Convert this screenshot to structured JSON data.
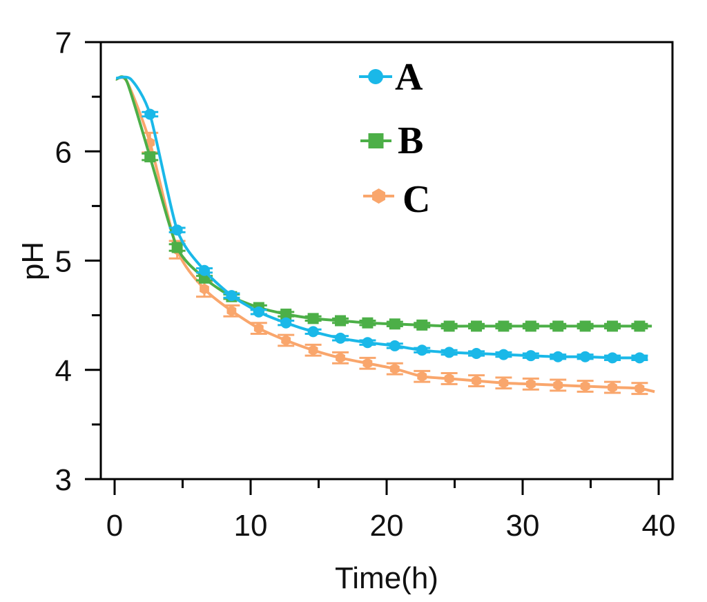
{
  "chart_data": {
    "type": "line",
    "title": "",
    "xlabel": "Time(h)",
    "ylabel": "pH",
    "xlim": [
      -1,
      41
    ],
    "ylim": [
      3,
      7
    ],
    "x_ticks": [
      0,
      10,
      20,
      30,
      40
    ],
    "x_tick_labels": [
      "0",
      "10",
      "20",
      "30",
      "40"
    ],
    "x_minor_ticks": [
      5,
      15,
      25,
      35
    ],
    "y_ticks": [
      3,
      4,
      5,
      6,
      7
    ],
    "y_tick_labels": [
      "3",
      "4",
      "5",
      "6",
      "7"
    ],
    "y_minor_ticks": [
      3.5,
      4.5,
      5.5,
      6.5
    ],
    "grid": false,
    "legend_position": "top-center",
    "series": [
      {
        "name": "A",
        "color": "#1ab8e8",
        "marker": "circle",
        "line_x": [
          0.1,
          1.2,
          2.6,
          4.6,
          6.6,
          8.6,
          10.6,
          12.6,
          14.6,
          16.6,
          18.6,
          20.6,
          22.6,
          24.6,
          26.6,
          28.6,
          30.6,
          32.6,
          34.6,
          36.6,
          38.6,
          39.2
        ],
        "line_y": [
          6.67,
          6.66,
          6.34,
          5.28,
          4.91,
          4.68,
          4.53,
          4.43,
          4.35,
          4.29,
          4.25,
          4.22,
          4.18,
          4.16,
          4.15,
          4.14,
          4.13,
          4.12,
          4.12,
          4.11,
          4.11,
          4.11
        ],
        "x": [
          2.6,
          4.6,
          6.6,
          8.6,
          10.6,
          12.6,
          14.6,
          16.6,
          18.6,
          20.6,
          22.6,
          24.6,
          26.6,
          28.6,
          30.6,
          32.6,
          34.6,
          36.6,
          38.6
        ],
        "y": [
          6.34,
          5.28,
          4.91,
          4.68,
          4.53,
          4.43,
          4.35,
          4.29,
          4.25,
          4.22,
          4.18,
          4.16,
          4.15,
          4.14,
          4.13,
          4.12,
          4.12,
          4.11,
          4.11
        ],
        "error": [
          0.02,
          0.02,
          0.02,
          0.02,
          0.02,
          0.02,
          0.02,
          0.02,
          0.02,
          0.02,
          0.02,
          0.02,
          0.02,
          0.02,
          0.02,
          0.02,
          0.02,
          0.02,
          0.02
        ]
      },
      {
        "name": "B",
        "color": "#4caf47",
        "marker": "square",
        "line_x": [
          0.1,
          0.9,
          2.6,
          4.6,
          6.6,
          8.6,
          10.6,
          12.6,
          14.6,
          16.6,
          18.6,
          20.6,
          22.6,
          24.6,
          26.6,
          28.6,
          30.6,
          32.6,
          34.6,
          36.6,
          38.6,
          39.5
        ],
        "line_y": [
          6.66,
          6.64,
          5.95,
          5.12,
          4.84,
          4.67,
          4.57,
          4.51,
          4.47,
          4.45,
          4.43,
          4.42,
          4.41,
          4.4,
          4.4,
          4.4,
          4.4,
          4.4,
          4.4,
          4.4,
          4.4,
          4.4
        ],
        "x": [
          2.6,
          4.6,
          6.6,
          8.6,
          10.6,
          12.6,
          14.6,
          16.6,
          18.6,
          20.6,
          22.6,
          24.6,
          26.6,
          28.6,
          30.6,
          32.6,
          34.6,
          36.6,
          38.6
        ],
        "y": [
          5.95,
          5.12,
          4.84,
          4.67,
          4.57,
          4.51,
          4.47,
          4.45,
          4.43,
          4.42,
          4.41,
          4.4,
          4.4,
          4.4,
          4.4,
          4.4,
          4.4,
          4.4,
          4.4
        ],
        "error": [
          0.03,
          0.03,
          0.02,
          0.02,
          0.02,
          0.02,
          0.02,
          0.02,
          0.02,
          0.02,
          0.02,
          0.02,
          0.02,
          0.02,
          0.02,
          0.02,
          0.02,
          0.02,
          0.02
        ]
      },
      {
        "name": "C",
        "color": "#f9a66c",
        "marker": "hexagon",
        "line_x": [
          0.1,
          0.9,
          2.6,
          4.6,
          6.6,
          8.6,
          10.6,
          12.6,
          14.6,
          16.6,
          18.6,
          20.6,
          22.6,
          24.6,
          26.6,
          28.6,
          30.6,
          32.6,
          34.6,
          36.6,
          38.6,
          39.7
        ],
        "line_y": [
          6.66,
          6.64,
          6.08,
          5.1,
          4.74,
          4.54,
          4.38,
          4.27,
          4.18,
          4.11,
          4.06,
          4.01,
          3.94,
          3.92,
          3.9,
          3.88,
          3.87,
          3.86,
          3.85,
          3.84,
          3.83,
          3.8
        ],
        "x": [
          2.6,
          4.6,
          6.6,
          8.6,
          10.6,
          12.6,
          14.6,
          16.6,
          18.6,
          20.6,
          22.6,
          24.6,
          26.6,
          28.6,
          30.6,
          32.6,
          34.6,
          36.6,
          38.6
        ],
        "y": [
          6.08,
          5.1,
          4.74,
          4.54,
          4.38,
          4.27,
          4.18,
          4.11,
          4.06,
          4.01,
          3.94,
          3.92,
          3.9,
          3.88,
          3.87,
          3.86,
          3.85,
          3.84,
          3.83
        ],
        "error": [
          0.09,
          0.08,
          0.07,
          0.05,
          0.05,
          0.05,
          0.05,
          0.05,
          0.05,
          0.05,
          0.05,
          0.05,
          0.05,
          0.05,
          0.05,
          0.05,
          0.05,
          0.05,
          0.05
        ]
      }
    ]
  }
}
